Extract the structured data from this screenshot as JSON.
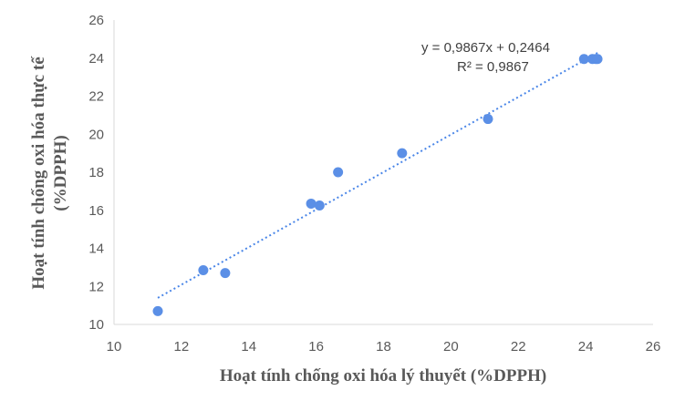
{
  "chart_data": {
    "type": "scatter",
    "xlabel": "Hoạt tính chống oxi hóa lý  thuyết (%DPPH)",
    "ylabel_line1": "Hoạt tính chống oxi  hóa thực tế",
    "ylabel_line2": "(%DPPH)",
    "xlim": [
      10,
      26
    ],
    "ylim": [
      10,
      26
    ],
    "xticks": [
      "10",
      "12",
      "14",
      "16",
      "18",
      "20",
      "22",
      "24",
      "26"
    ],
    "yticks": [
      "10",
      "12",
      "14",
      "16",
      "18",
      "20",
      "22",
      "24",
      "26"
    ],
    "grid": false,
    "points": [
      {
        "x": 11.3,
        "y": 10.7
      },
      {
        "x": 12.65,
        "y": 12.85
      },
      {
        "x": 13.3,
        "y": 12.7
      },
      {
        "x": 15.85,
        "y": 16.35
      },
      {
        "x": 16.1,
        "y": 16.25
      },
      {
        "x": 16.65,
        "y": 18.0
      },
      {
        "x": 18.55,
        "y": 19.0
      },
      {
        "x": 21.1,
        "y": 20.8
      },
      {
        "x": 23.95,
        "y": 23.95
      },
      {
        "x": 24.2,
        "y": 23.95
      },
      {
        "x": 24.3,
        "y": 23.95
      },
      {
        "x": 24.35,
        "y": 23.95
      }
    ],
    "trendline": {
      "slope": 0.9867,
      "intercept": 0.2464,
      "x_start": 11.3,
      "x_end": 24.35
    },
    "equation": "y = 0,9867x + 0,2464",
    "r_squared": "R² = 0,9867",
    "marker_color": "#5b8fe6",
    "trendline_color": "#4a86e8",
    "axis_color": "#d9d9d9"
  }
}
